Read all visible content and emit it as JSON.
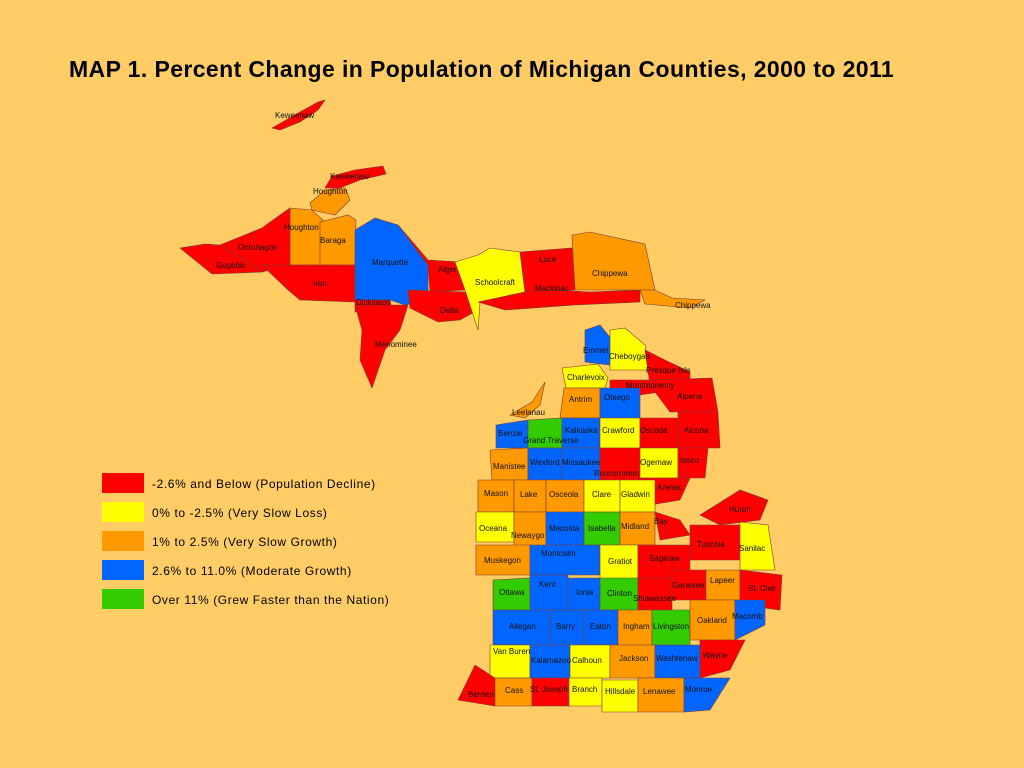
{
  "title": "MAP 1.  Percent Change in Population of Michigan Counties, 2000 to 2011",
  "colors": {
    "decline": "#FF0000",
    "very_slow_loss": "#FFFF00",
    "very_slow_growth": "#FF9900",
    "moderate_growth": "#0066FF",
    "grew_faster": "#33CC00",
    "background": "#FFCC66"
  },
  "legend": [
    {
      "label": "-2.6% and Below (Population Decline)",
      "category": "decline"
    },
    {
      "label": "0% to -2.5% (Very Slow Loss)",
      "category": "very_slow_loss"
    },
    {
      "label": "1% to 2.5% (Very Slow Growth)",
      "category": "very_slow_growth"
    },
    {
      "label": "2.6% to 11.0% (Moderate Growth)",
      "category": "moderate_growth"
    },
    {
      "label": "Over 11% (Grew Faster than the Nation)",
      "category": "grew_faster"
    }
  ],
  "counties": [
    {
      "name": "Keweenaw",
      "category": "decline"
    },
    {
      "name": "Keweenaw",
      "category": "decline"
    },
    {
      "name": "Houghton",
      "category": "very_slow_growth"
    },
    {
      "name": "Houghton",
      "category": "very_slow_growth"
    },
    {
      "name": "Baraga",
      "category": "very_slow_growth"
    },
    {
      "name": "Ontonagon",
      "category": "decline"
    },
    {
      "name": "Gogebic",
      "category": "decline"
    },
    {
      "name": "Iron",
      "category": "decline"
    },
    {
      "name": "Marquette",
      "category": "moderate_growth"
    },
    {
      "name": "Dickinson",
      "category": "decline"
    },
    {
      "name": "Menominee",
      "category": "decline"
    },
    {
      "name": "Alger",
      "category": "decline"
    },
    {
      "name": "Delta",
      "category": "decline"
    },
    {
      "name": "Schoolcraft",
      "category": "very_slow_loss"
    },
    {
      "name": "Luce",
      "category": "decline"
    },
    {
      "name": "Mackinac",
      "category": "decline"
    },
    {
      "name": "Chippewa",
      "category": "very_slow_growth"
    },
    {
      "name": "Chippewa",
      "category": "very_slow_growth"
    },
    {
      "name": "Emmet",
      "category": "moderate_growth"
    },
    {
      "name": "Cheboygan",
      "category": "very_slow_loss"
    },
    {
      "name": "Presque Isle",
      "category": "decline"
    },
    {
      "name": "Charlevoix",
      "category": "very_slow_loss"
    },
    {
      "name": "Montmorency",
      "category": "decline"
    },
    {
      "name": "Alpena",
      "category": "decline"
    },
    {
      "name": "Antrim",
      "category": "very_slow_growth"
    },
    {
      "name": "Otsego",
      "category": "moderate_growth"
    },
    {
      "name": "Leelanau",
      "category": "very_slow_growth"
    },
    {
      "name": "Benzie",
      "category": "moderate_growth"
    },
    {
      "name": "Grand Traverse",
      "category": "grew_faster"
    },
    {
      "name": "Kalkaska",
      "category": "moderate_growth"
    },
    {
      "name": "Crawford",
      "category": "very_slow_loss"
    },
    {
      "name": "Oscoda",
      "category": "decline"
    },
    {
      "name": "Alcona",
      "category": "decline"
    },
    {
      "name": "Manistee",
      "category": "very_slow_growth"
    },
    {
      "name": "Wexford",
      "category": "moderate_growth"
    },
    {
      "name": "Missaukee",
      "category": "moderate_growth"
    },
    {
      "name": "Roscommon",
      "category": "decline"
    },
    {
      "name": "Ogemaw",
      "category": "very_slow_loss"
    },
    {
      "name": "Iosco",
      "category": "decline"
    },
    {
      "name": "Arenac",
      "category": "decline"
    },
    {
      "name": "Mason",
      "category": "very_slow_growth"
    },
    {
      "name": "Lake",
      "category": "very_slow_growth"
    },
    {
      "name": "Osceola",
      "category": "very_slow_growth"
    },
    {
      "name": "Clare",
      "category": "very_slow_loss"
    },
    {
      "name": "Gladwin",
      "category": "very_slow_loss"
    },
    {
      "name": "Bay",
      "category": "decline"
    },
    {
      "name": "Huron",
      "category": "decline"
    },
    {
      "name": "Oceana",
      "category": "very_slow_loss"
    },
    {
      "name": "Newaygo",
      "category": "very_slow_growth"
    },
    {
      "name": "Mecosta",
      "category": "moderate_growth"
    },
    {
      "name": "Isabella",
      "category": "grew_faster"
    },
    {
      "name": "Midland",
      "category": "very_slow_growth"
    },
    {
      "name": "Tuscola",
      "category": "decline"
    },
    {
      "name": "Sanilac",
      "category": "very_slow_loss"
    },
    {
      "name": "Muskegon",
      "category": "very_slow_growth"
    },
    {
      "name": "Montcalm",
      "category": "moderate_growth"
    },
    {
      "name": "Gratiot",
      "category": "very_slow_loss"
    },
    {
      "name": "Saginaw",
      "category": "decline"
    },
    {
      "name": "Ottawa",
      "category": "grew_faster"
    },
    {
      "name": "Kent",
      "category": "moderate_growth"
    },
    {
      "name": "Ionia",
      "category": "moderate_growth"
    },
    {
      "name": "Clinton",
      "category": "grew_faster"
    },
    {
      "name": "Shiawassee",
      "category": "decline"
    },
    {
      "name": "Genesee",
      "category": "decline"
    },
    {
      "name": "Lapeer",
      "category": "very_slow_growth"
    },
    {
      "name": "St. Clair",
      "category": "decline"
    },
    {
      "name": "Allegan",
      "category": "moderate_growth"
    },
    {
      "name": "Barry",
      "category": "moderate_growth"
    },
    {
      "name": "Eaton",
      "category": "moderate_growth"
    },
    {
      "name": "Ingham",
      "category": "very_slow_growth"
    },
    {
      "name": "Livingston",
      "category": "grew_faster"
    },
    {
      "name": "Oakland",
      "category": "very_slow_growth"
    },
    {
      "name": "Macomb",
      "category": "moderate_growth"
    },
    {
      "name": "Van Buren",
      "category": "very_slow_loss"
    },
    {
      "name": "Kalamazoo",
      "category": "moderate_growth"
    },
    {
      "name": "Calhoun",
      "category": "very_slow_loss"
    },
    {
      "name": "Jackson",
      "category": "very_slow_growth"
    },
    {
      "name": "Washtenaw",
      "category": "moderate_growth"
    },
    {
      "name": "Wayne",
      "category": "decline"
    },
    {
      "name": "Berrien",
      "category": "decline"
    },
    {
      "name": "Cass",
      "category": "very_slow_growth"
    },
    {
      "name": "St. Joseph",
      "category": "decline"
    },
    {
      "name": "Branch",
      "category": "very_slow_loss"
    },
    {
      "name": "Hillsdale",
      "category": "very_slow_loss"
    },
    {
      "name": "Lenawee",
      "category": "very_slow_growth"
    },
    {
      "name": "Monroe",
      "category": "moderate_growth"
    }
  ]
}
